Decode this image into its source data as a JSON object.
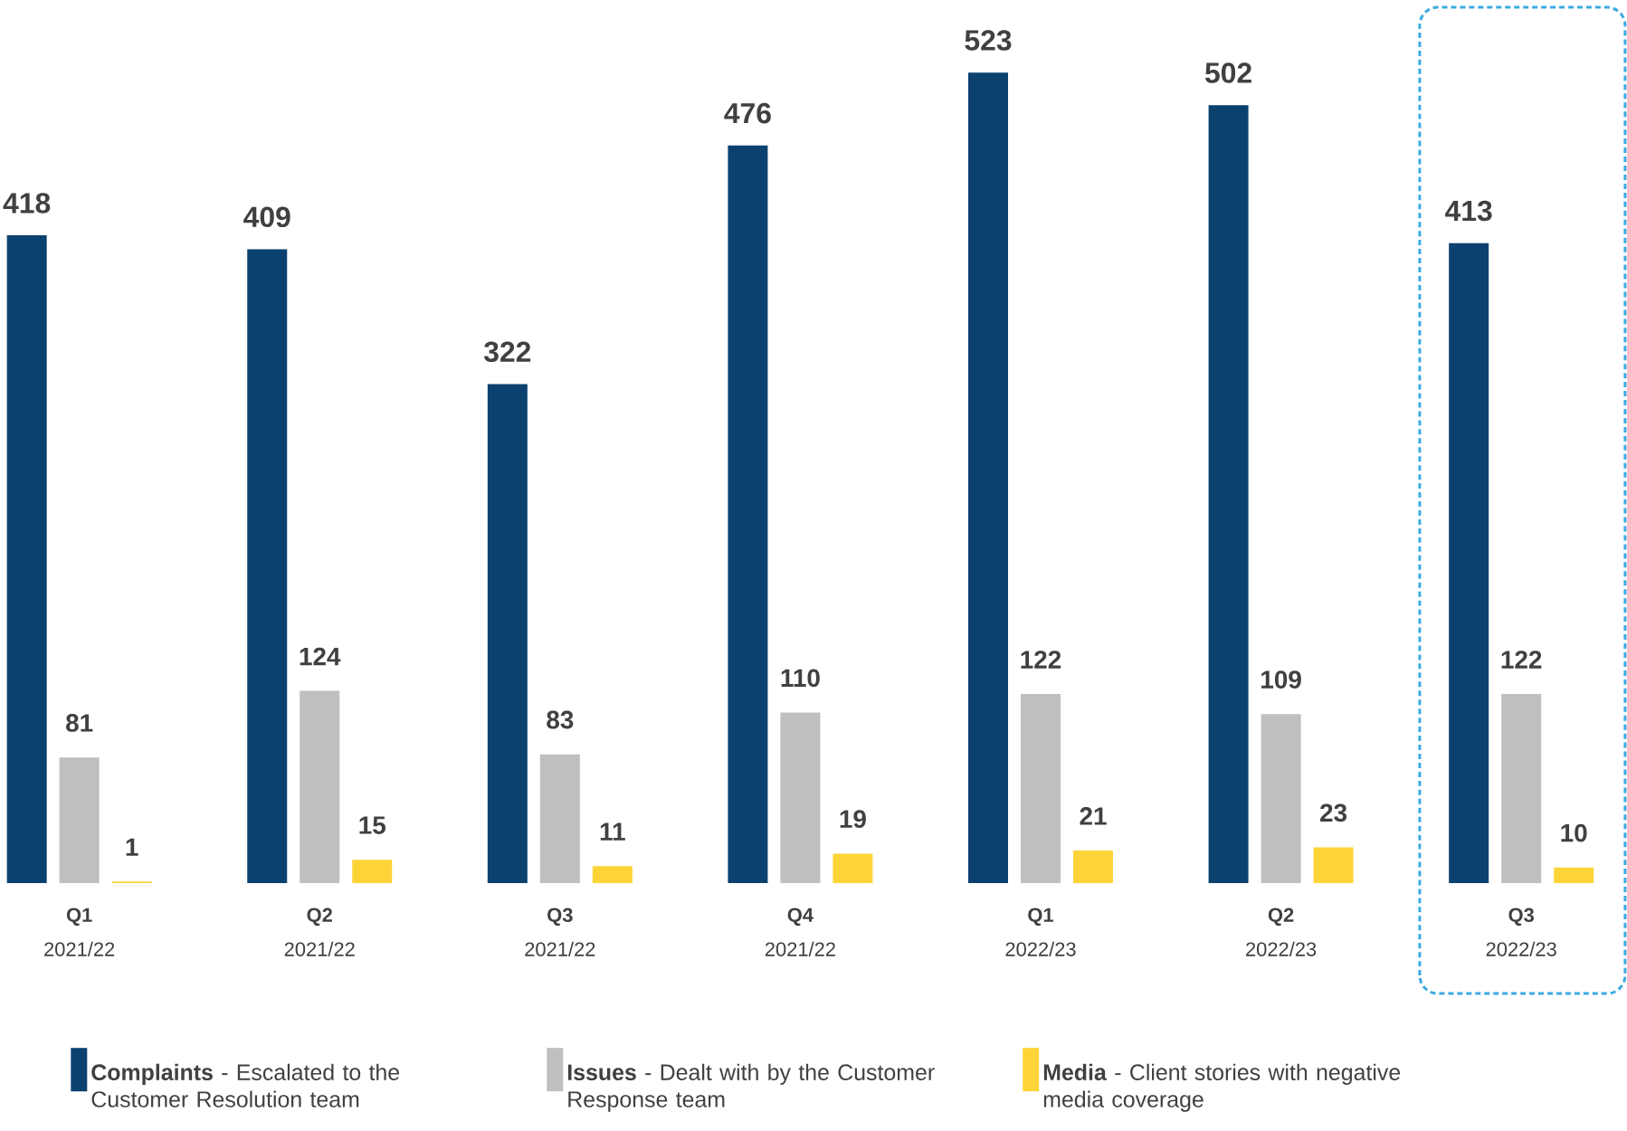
{
  "chart_data": {
    "type": "bar",
    "categories": [
      "**Q1** 2021/22",
      "**Q2** 2021/22",
      "**Q3** 2021/22",
      "**Q4** 2021/22",
      "**Q1** 2022/23",
      "**Q2** 2022/23",
      "**Q3** 2022/23"
    ],
    "series": [
      {
        "name": "**Complaints** - Escalated to the Customer Resolution team",
        "color": "#0b416f",
        "values": [
          418,
          409,
          322,
          476,
          523,
          502,
          413
        ]
      },
      {
        "name": "**Issues** - Dealt with by the Customer Response team",
        "color": "#bfbfbf",
        "values": [
          81,
          124,
          83,
          110,
          122,
          109,
          122
        ]
      },
      {
        "name": "**Media** - Client stories with negative media coverage",
        "color": "#fdd438",
        "values": [
          1,
          15,
          11,
          19,
          21,
          23,
          10
        ]
      }
    ],
    "data_labels": true,
    "legend": "bottom"
  }
}
